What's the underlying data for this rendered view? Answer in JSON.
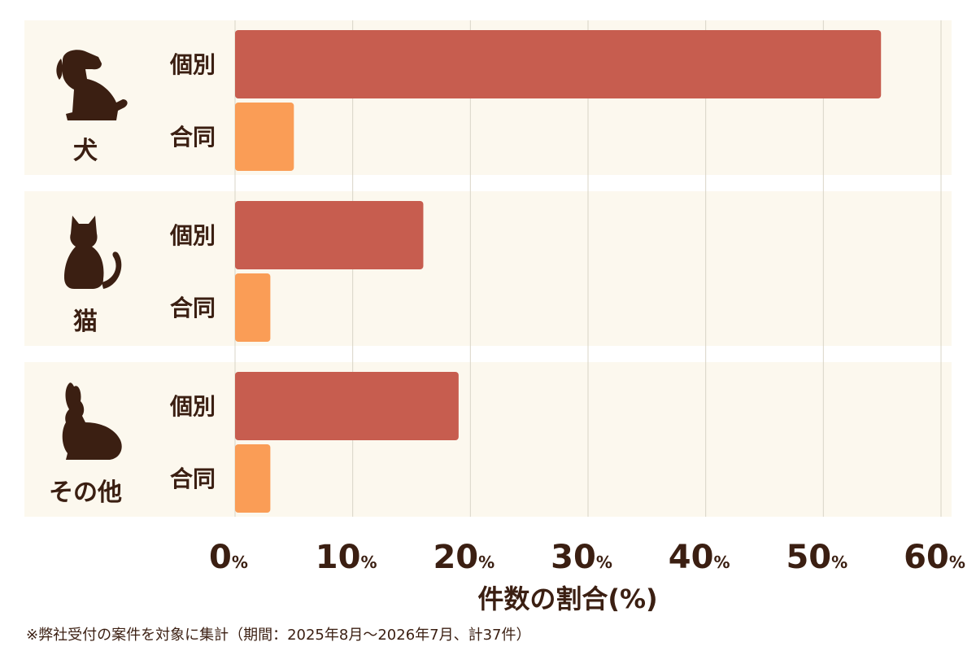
{
  "chart_data": {
    "type": "bar",
    "orientation": "horizontal",
    "groups": [
      {
        "name": "犬",
        "icon": "dog-icon",
        "bars": [
          {
            "label": "個別",
            "value": 54.9
          },
          {
            "label": "合同",
            "value": 5.0
          }
        ]
      },
      {
        "name": "猫",
        "icon": "cat-icon",
        "bars": [
          {
            "label": "個別",
            "value": 16.0
          },
          {
            "label": "合同",
            "value": 3.0
          }
        ]
      },
      {
        "name": "その他",
        "icon": "rabbit-icon",
        "bars": [
          {
            "label": "個別",
            "value": 19.0
          },
          {
            "label": "合同",
            "value": 3.0
          }
        ]
      }
    ],
    "xlim": [
      0,
      60
    ],
    "xticks": [
      0,
      10,
      20,
      30,
      40,
      50,
      60
    ],
    "xtick_unit": "%",
    "xlabel": "件数の割合(%)",
    "colors": {
      "個別": "#c75d4f",
      "合同": "#fa9d56",
      "panel_bg": "#fcf8ee",
      "text": "#3b1f12",
      "grid": "#d9d4c7"
    },
    "grid": true
  },
  "note": "※弊社受付の案件を対象に集計（期間：2025年8月〜2026年7月、計37件）"
}
